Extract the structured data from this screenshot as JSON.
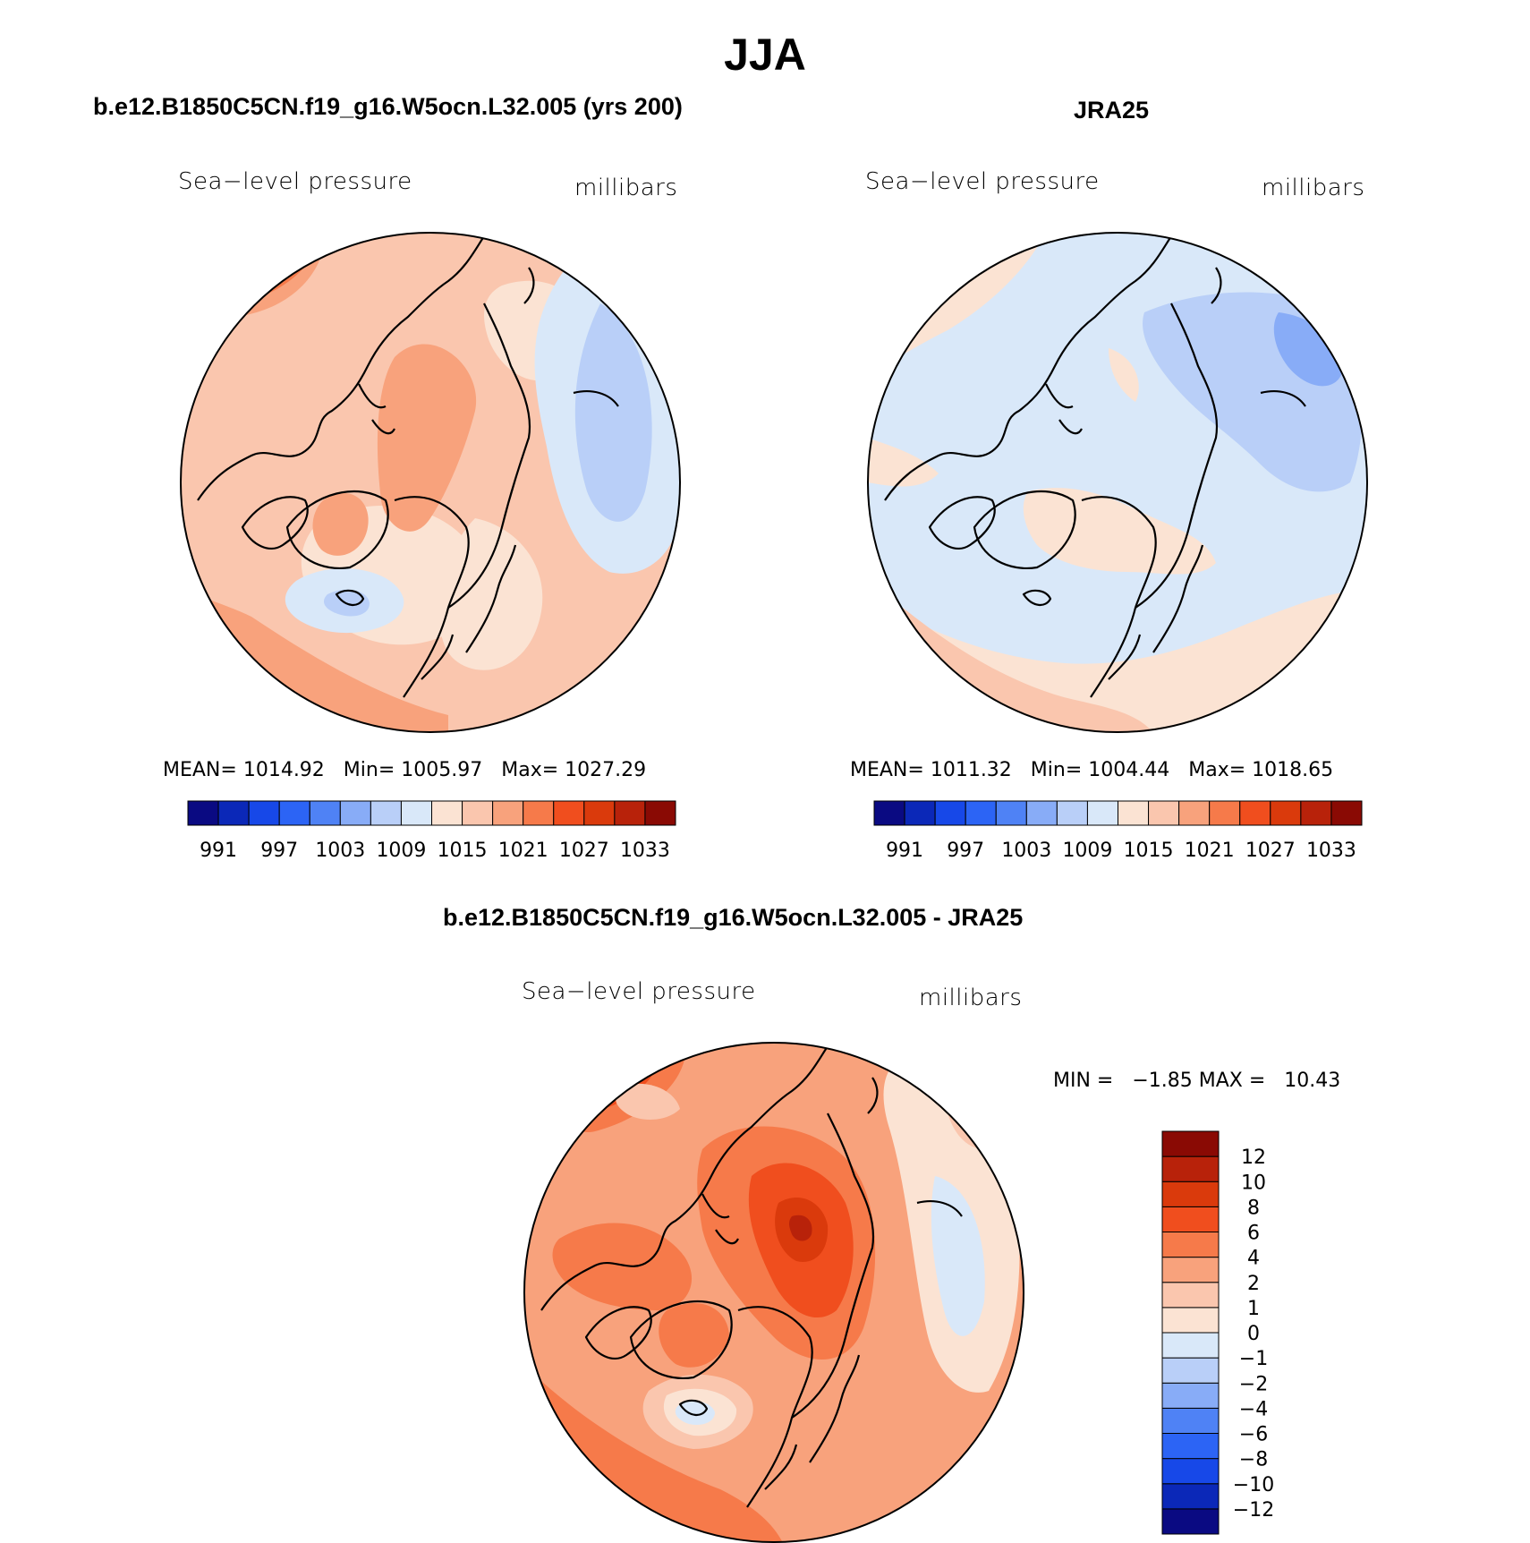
{
  "figure": {
    "season": "JJA",
    "colors": [
      "#0a0a82",
      "#0b28b8",
      "#1748e8",
      "#2c64f5",
      "#4f82f5",
      "#88acf7",
      "#b9cff8",
      "#d9e8f9",
      "#fbe3d3",
      "#fac6ae",
      "#f8a27c",
      "#f67a4a",
      "#f04e1e",
      "#da3a0c",
      "#b8220a",
      "#8a0a04"
    ],
    "coastline_color": "#000000"
  },
  "chart_data": [
    {
      "type": "heatmap",
      "panel_title": "b.e12.B1850C5CN.f19_g16.W5ocn.L32.005 (yrs 200)",
      "variable_label": "Sea−level pressure",
      "units": "millibars",
      "projection": "north polar stereographic",
      "stats": {
        "mean_label": "MEAN=",
        "mean": "1014.92",
        "min_label": "Min=",
        "min": "1005.97",
        "max_label": "Max=",
        "max": "1027.29"
      },
      "colorbar": {
        "orientation": "horizontal",
        "levels": [
          988,
          991,
          994,
          997,
          1000,
          1003,
          1006,
          1009,
          1012,
          1015,
          1018,
          1021,
          1024,
          1027,
          1030,
          1033
        ],
        "tick_labels": [
          "991",
          "997",
          "1003",
          "1009",
          "1015",
          "1021",
          "1027",
          "1033"
        ]
      },
      "dominant_range": "1012-1021"
    },
    {
      "type": "heatmap",
      "panel_title": "JRA25",
      "variable_label": "Sea−level pressure",
      "units": "millibars",
      "projection": "north polar stereographic",
      "stats": {
        "mean_label": "MEAN=",
        "mean": "1011.32",
        "min_label": "Min=",
        "min": "1004.44",
        "max_label": "Max=",
        "max": "1018.65"
      },
      "colorbar": {
        "orientation": "horizontal",
        "levels": [
          988,
          991,
          994,
          997,
          1000,
          1003,
          1006,
          1009,
          1012,
          1015,
          1018,
          1021,
          1024,
          1027,
          1030,
          1033
        ],
        "tick_labels": [
          "991",
          "997",
          "1003",
          "1009",
          "1015",
          "1021",
          "1027",
          "1033"
        ]
      },
      "dominant_range": "1006-1015"
    },
    {
      "type": "heatmap",
      "panel_title": "b.e12.B1850C5CN.f19_g16.W5ocn.L32.005 - JRA25",
      "variable_label": "Sea−level pressure",
      "units": "millibars",
      "projection": "north polar stereographic",
      "stats": {
        "min_label": "MIN =",
        "min": "−1.85",
        "max_label": "MAX =",
        "max": "10.43"
      },
      "colorbar": {
        "orientation": "vertical",
        "levels": [
          -12,
          -10,
          -8,
          -6,
          -4,
          -2,
          -1,
          0,
          1,
          2,
          4,
          6,
          8,
          10,
          12
        ],
        "tick_labels": [
          "12",
          "10",
          "8",
          "6",
          "4",
          "2",
          "1",
          "0",
          "−1",
          "−2",
          "−4",
          "−6",
          "−8",
          "−10",
          "−12"
        ]
      },
      "dominant_range": "2-8"
    }
  ]
}
